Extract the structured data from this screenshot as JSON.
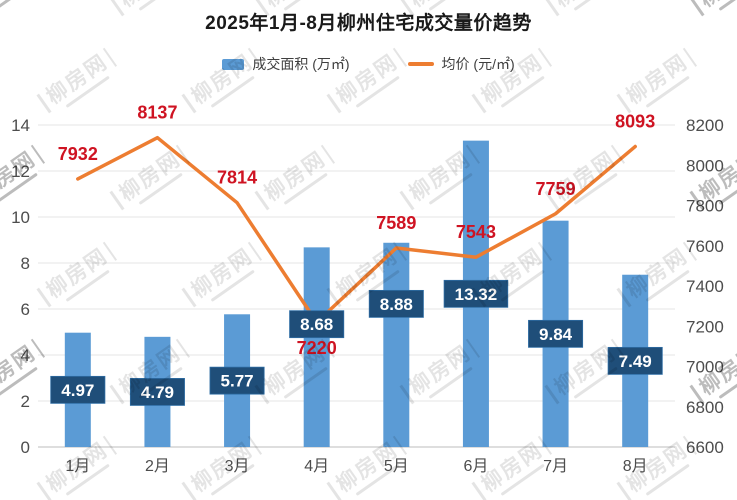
{
  "watermark_text": "柳房网",
  "colors": {
    "bar": "#5B9BD5",
    "line": "#ED7D31",
    "value_box": "#1F4E79",
    "value_box_border": "#2E6DA4",
    "value_text": "#FFFFFF",
    "price_label": "#CF1322",
    "axis_text": "#4D4D4D",
    "grid": "#E4E4E4",
    "baseline": "#BDBDBD",
    "title_text": "#1A1A1A"
  },
  "chart_data": {
    "type": "combo",
    "title": "2025年1月-8月柳州住宅成交量价趋势",
    "categories": [
      "1月",
      "2月",
      "3月",
      "4月",
      "5月",
      "6月",
      "7月",
      "8月"
    ],
    "series": [
      {
        "name": "成交面积 (万㎡)",
        "type": "bar",
        "axis": "left",
        "values": [
          4.97,
          4.79,
          5.77,
          8.68,
          8.88,
          13.32,
          9.84,
          7.49
        ]
      },
      {
        "name": "均价 (元/㎡)",
        "type": "line",
        "axis": "right",
        "values": [
          7932,
          8137,
          7814,
          7220,
          7589,
          7543,
          7759,
          8093
        ]
      }
    ],
    "left_axis": {
      "min": 0,
      "max": 14,
      "step": 2,
      "ticks": [
        "0",
        "2",
        "4",
        "6",
        "8",
        "10",
        "12",
        "14"
      ]
    },
    "right_axis": {
      "min": 6600,
      "max": 8200,
      "step": 200,
      "ticks": [
        "6600",
        "6800",
        "7000",
        "7200",
        "7400",
        "7600",
        "7800",
        "8000",
        "8200"
      ]
    },
    "grid": true,
    "legend_position": "top"
  }
}
